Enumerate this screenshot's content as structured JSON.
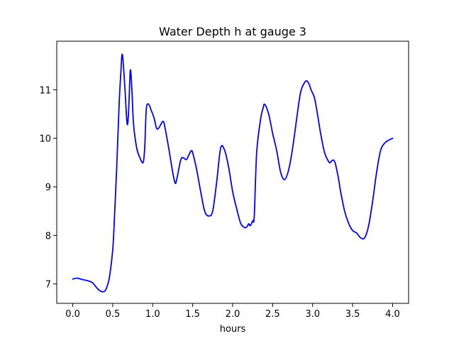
{
  "chart_data": {
    "type": "line",
    "title": "Water Depth h at gauge 3",
    "xlabel": "hours",
    "ylabel": "",
    "xlim": [
      -0.2,
      4.2
    ],
    "ylim": [
      6.6,
      12.0
    ],
    "xticks": [
      0.0,
      0.5,
      1.0,
      1.5,
      2.0,
      2.5,
      3.0,
      3.5,
      4.0
    ],
    "xtick_labels": [
      "0.0",
      "0.5",
      "1.0",
      "1.5",
      "2.0",
      "2.5",
      "3.0",
      "3.5",
      "4.0"
    ],
    "yticks": [
      7,
      8,
      9,
      10,
      11
    ],
    "ytick_labels": [
      "7",
      "8",
      "9",
      "10",
      "11"
    ],
    "grid": false,
    "series": [
      {
        "color": "#0000ff",
        "x": [
          0.0,
          0.05,
          0.1,
          0.15,
          0.2,
          0.25,
          0.3,
          0.35,
          0.4,
          0.43,
          0.46,
          0.5,
          0.52,
          0.55,
          0.58,
          0.6,
          0.62,
          0.65,
          0.68,
          0.7,
          0.72,
          0.74,
          0.76,
          0.8,
          0.84,
          0.88,
          0.9,
          0.92,
          0.95,
          0.98,
          1.0,
          1.02,
          1.05,
          1.08,
          1.1,
          1.13,
          1.15,
          1.2,
          1.25,
          1.28,
          1.3,
          1.35,
          1.38,
          1.42,
          1.45,
          1.48,
          1.5,
          1.55,
          1.6,
          1.65,
          1.7,
          1.75,
          1.8,
          1.85,
          1.9,
          1.95,
          2.0,
          2.05,
          2.1,
          2.15,
          2.18,
          2.2,
          2.22,
          2.25,
          2.27,
          2.3,
          2.35,
          2.38,
          2.4,
          2.45,
          2.5,
          2.55,
          2.6,
          2.65,
          2.7,
          2.75,
          2.8,
          2.85,
          2.9,
          2.93,
          2.96,
          2.98,
          3.02,
          3.05,
          3.1,
          3.15,
          3.2,
          3.22,
          3.25,
          3.28,
          3.32,
          3.35,
          3.4,
          3.45,
          3.5,
          3.55,
          3.6,
          3.65,
          3.7,
          3.75,
          3.8,
          3.85,
          3.9,
          3.95,
          4.0
        ],
        "values": [
          7.1,
          7.12,
          7.1,
          7.08,
          7.06,
          7.02,
          6.92,
          6.85,
          6.85,
          6.95,
          7.15,
          7.7,
          8.3,
          9.4,
          10.7,
          11.3,
          11.73,
          11.1,
          10.3,
          10.6,
          11.4,
          11.0,
          10.3,
          9.8,
          9.6,
          9.5,
          9.8,
          10.6,
          10.7,
          10.58,
          10.5,
          10.4,
          10.2,
          10.22,
          10.28,
          10.35,
          10.25,
          9.8,
          9.3,
          9.08,
          9.15,
          9.55,
          9.6,
          9.56,
          9.65,
          9.74,
          9.7,
          9.35,
          8.9,
          8.5,
          8.4,
          8.5,
          9.1,
          9.8,
          9.75,
          9.4,
          8.9,
          8.55,
          8.25,
          8.16,
          8.18,
          8.24,
          8.2,
          8.3,
          8.4,
          9.7,
          10.4,
          10.62,
          10.7,
          10.5,
          10.1,
          9.75,
          9.3,
          9.15,
          9.35,
          9.8,
          10.4,
          10.95,
          11.15,
          11.18,
          11.1,
          11.0,
          10.85,
          10.6,
          10.1,
          9.7,
          9.52,
          9.5,
          9.55,
          9.5,
          9.2,
          8.9,
          8.5,
          8.25,
          8.1,
          8.05,
          7.95,
          7.95,
          8.2,
          8.7,
          9.3,
          9.75,
          9.9,
          9.96,
          10.0
        ]
      }
    ]
  }
}
